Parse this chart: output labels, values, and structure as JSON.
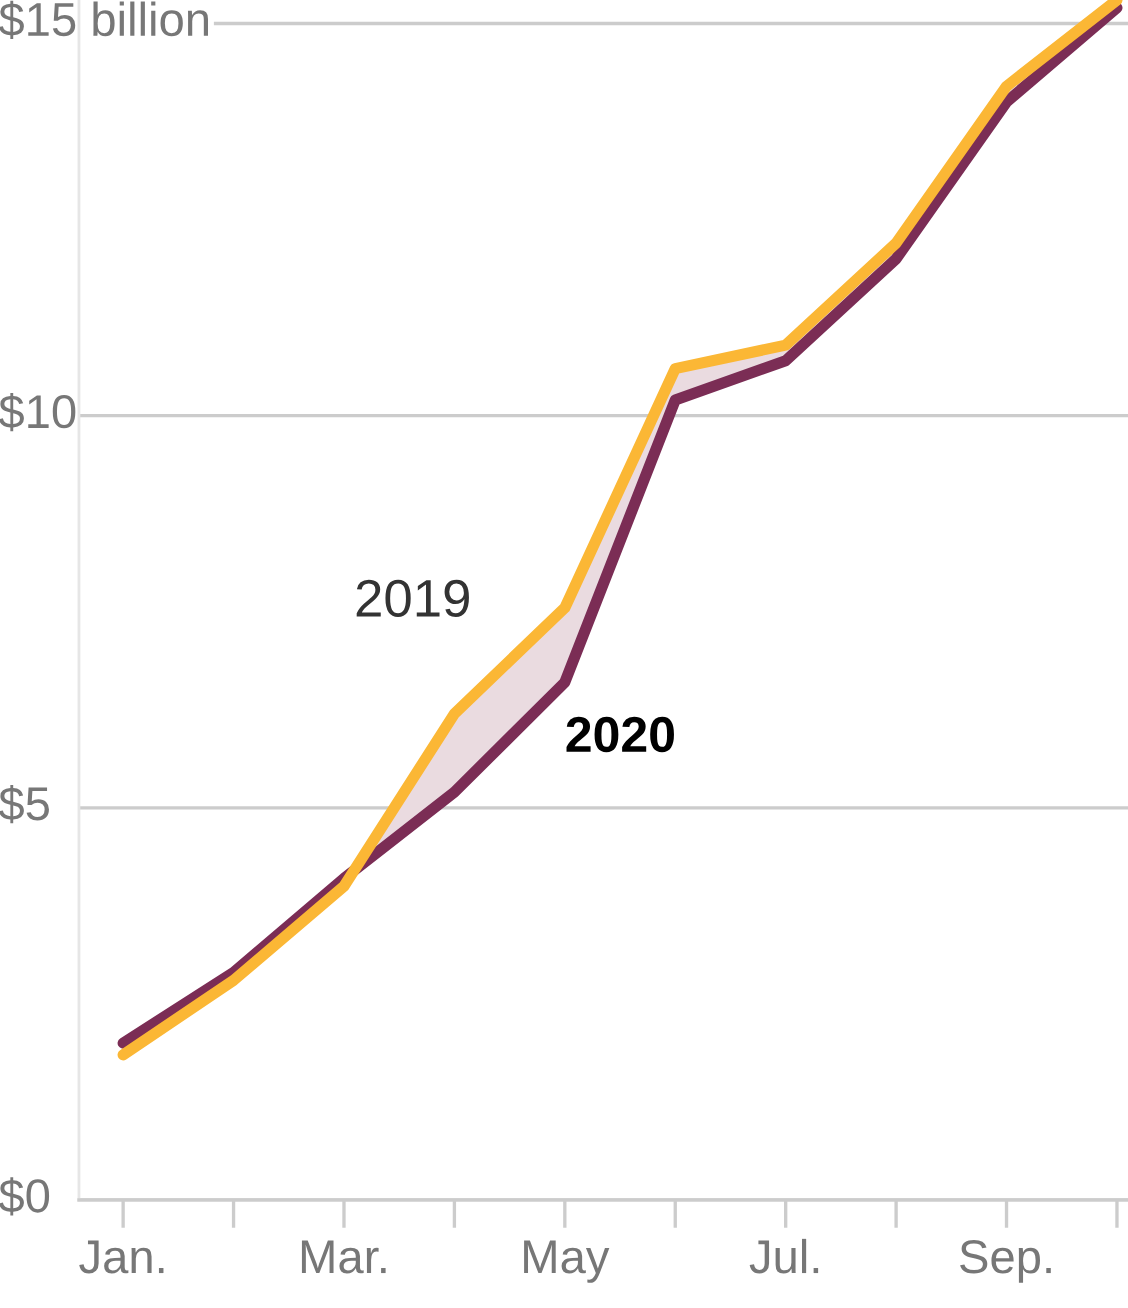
{
  "chart_data": {
    "type": "line",
    "categories": [
      "Jan.",
      null,
      "Mar.",
      null,
      "May",
      null,
      "Jul.",
      null,
      "Sep.",
      null
    ],
    "series": [
      {
        "name": "2019",
        "color": "#fbb735",
        "values": [
          1.85,
          2.8,
          4.0,
          6.2,
          7.55,
          10.6,
          10.9,
          12.2,
          14.2,
          15.3
        ]
      },
      {
        "name": "2020",
        "color": "#7b2d55",
        "values": [
          2.0,
          2.9,
          4.1,
          5.2,
          6.6,
          10.2,
          10.7,
          12.0,
          14.0,
          15.2
        ],
        "lower": [
          2.0,
          2.9,
          4.1,
          5.2,
          6.6,
          10.2,
          10.7,
          12.0,
          14.0,
          15.2
        ],
        "upper": [
          2.0,
          2.9,
          4.1,
          6.2,
          7.55,
          10.6,
          10.9,
          12.2,
          14.2,
          15.3
        ]
      }
    ],
    "ylim": [
      0,
      15.3
    ],
    "yticks": [
      {
        "value": 0,
        "label": "$0"
      },
      {
        "value": 5,
        "label": "$5"
      },
      {
        "value": 10,
        "label": "$10"
      },
      {
        "value": 15,
        "label": "$15 billion"
      }
    ],
    "grid": "y",
    "legend": false,
    "marker": "none",
    "line_style": "solid"
  }
}
